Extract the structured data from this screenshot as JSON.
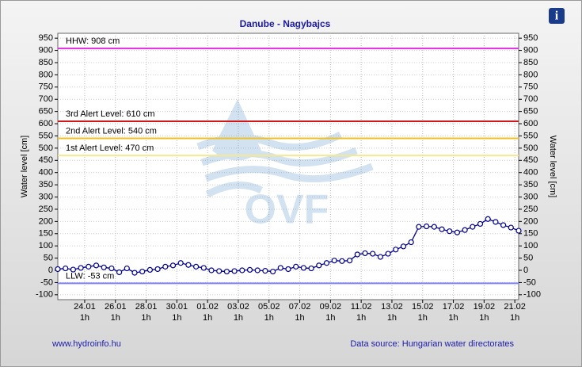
{
  "chart_data": {
    "type": "line",
    "title": "Danube - Nagybajcs",
    "y_label": "Water level [cm]",
    "y2_label": "Water level [cm]",
    "watermark": "OVF",
    "footer_left": "www.hydroinfo.hu",
    "footer_right": "Data source: Hungarian water directorates",
    "info_icon": "i",
    "grid": true,
    "xlim": [
      0,
      30
    ],
    "xticks": [
      {
        "value": 1.75,
        "label": "24.01\n1h"
      },
      {
        "value": 3.75,
        "label": "26.01\n1h"
      },
      {
        "value": 5.75,
        "label": "28.01\n1h"
      },
      {
        "value": 7.75,
        "label": "30.01\n1h"
      },
      {
        "value": 9.75,
        "label": "01.02\n1h"
      },
      {
        "value": 11.75,
        "label": "03.02\n1h"
      },
      {
        "value": 13.75,
        "label": "05.02\n1h"
      },
      {
        "value": 15.75,
        "label": "07.02\n1h"
      },
      {
        "value": 17.75,
        "label": "09.02\n1h"
      },
      {
        "value": 19.75,
        "label": "11.02\n1h"
      },
      {
        "value": 21.75,
        "label": "13.02\n1h"
      },
      {
        "value": 23.75,
        "label": "15.02\n1h"
      },
      {
        "value": 25.75,
        "label": "17.02\n1h"
      },
      {
        "value": 27.75,
        "label": "19.02\n1h"
      },
      {
        "value": 29.75,
        "label": "21.02\n1h"
      }
    ],
    "ylim": [
      -120,
      970
    ],
    "yticks": [
      -100,
      -50,
      0,
      50,
      100,
      150,
      200,
      250,
      300,
      350,
      400,
      450,
      500,
      550,
      600,
      650,
      700,
      750,
      800,
      850,
      900,
      950
    ],
    "levels": [
      {
        "label": "HHW: 908 cm",
        "value": 908,
        "color": "#e030e0"
      },
      {
        "label": "3rd Alert Level: 610 cm",
        "value": 610,
        "color": "#d01818"
      },
      {
        "label": "2nd Alert Level: 540 cm",
        "value": 540,
        "color": "#f0c020"
      },
      {
        "label": "1st Alert Level: 470 cm",
        "value": 470,
        "color": "#f4e890"
      },
      {
        "label": "LLW: -53 cm",
        "value": -53,
        "color": "#8080f0"
      }
    ],
    "series": [
      {
        "color": "#00008b",
        "x": [
          0,
          0.5,
          1,
          1.5,
          2,
          2.5,
          3,
          3.5,
          4,
          4.5,
          5,
          5.5,
          6,
          6.5,
          7,
          7.5,
          8,
          8.5,
          9,
          9.5,
          10,
          10.5,
          11,
          11.5,
          12,
          12.5,
          13,
          13.5,
          14,
          14.5,
          15,
          15.5,
          16,
          16.5,
          17,
          17.5,
          18,
          18.5,
          19,
          19.5,
          20,
          20.5,
          21,
          21.5,
          22,
          22.5,
          23,
          23.5,
          24,
          24.5,
          25,
          25.5,
          26,
          26.5,
          27,
          27.5,
          28,
          28.5,
          29,
          29.5,
          30
        ],
        "values": [
          5,
          8,
          3,
          10,
          15,
          20,
          12,
          8,
          -8,
          8,
          -10,
          -5,
          2,
          5,
          15,
          20,
          30,
          22,
          15,
          10,
          0,
          -3,
          -5,
          -3,
          0,
          2,
          0,
          -2,
          -5,
          10,
          5,
          15,
          10,
          8,
          20,
          30,
          40,
          38,
          40,
          65,
          70,
          68,
          55,
          68,
          85,
          98,
          115,
          178,
          180,
          178,
          168,
          160,
          155,
          165,
          178,
          190,
          210,
          198,
          185,
          175,
          162
        ]
      }
    ]
  }
}
